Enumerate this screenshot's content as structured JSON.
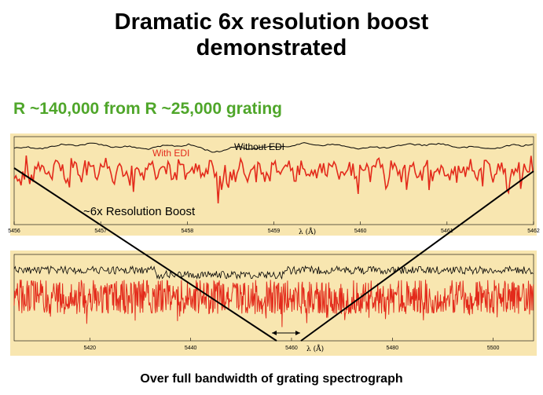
{
  "slide": {
    "title_line1": "Dramatic 6x resolution boost",
    "title_line2": "demonstrated",
    "subtitle": "R ~140,000 from R ~25,000 grating",
    "caption": "Over full bandwidth of grating spectrograph",
    "background_color": "#ffffff",
    "panel_color": "#f8e6b0",
    "subtitle_color": "#4fa62a"
  },
  "chart_data": [
    {
      "type": "line",
      "panel": "top",
      "xlabel": "λ (Å)",
      "x_ticks": [
        "5456",
        "5457",
        "5458",
        "5459",
        "5460",
        "5461",
        "5462"
      ],
      "xlim": [
        5456,
        5462
      ],
      "annotations": {
        "with_edi": "With EDI",
        "without_edi": "Without EDI",
        "boost": "~6x Resolution Boost"
      },
      "series": [
        {
          "name": "With EDI",
          "color": "#e32a1b"
        },
        {
          "name": "Without EDI",
          "color": "#000000"
        }
      ]
    },
    {
      "type": "line",
      "panel": "bottom",
      "xlabel": "λ (Å)",
      "x_ticks": [
        "5420",
        "5440",
        "5460",
        "5480",
        "5500"
      ],
      "xlim": [
        5405,
        5508
      ],
      "series": [
        {
          "name": "With EDI",
          "color": "#e32a1b"
        },
        {
          "name": "Without EDI",
          "color": "#000000"
        }
      ]
    }
  ]
}
